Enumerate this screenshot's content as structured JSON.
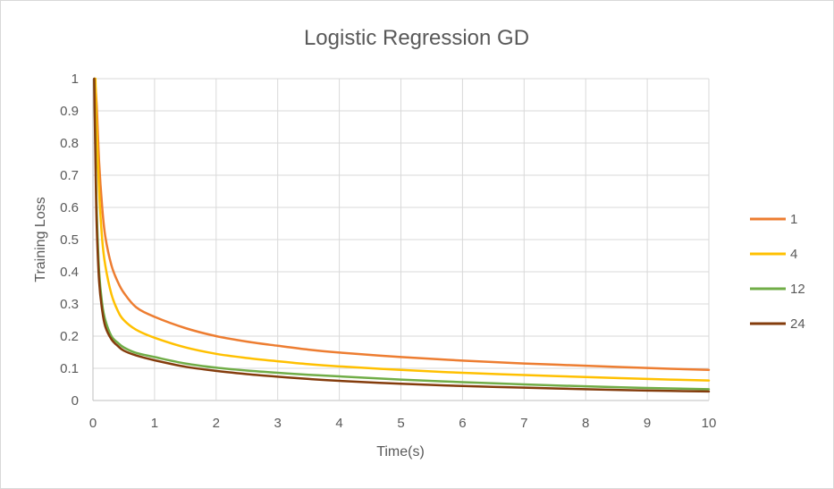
{
  "chart_data": {
    "type": "line",
    "title": "Logistic Regression GD",
    "xlabel": "Time(s)",
    "ylabel": "Training Loss",
    "xlim": [
      0,
      10
    ],
    "ylim": [
      0,
      1
    ],
    "x_ticks": [
      "0",
      "1",
      "2",
      "3",
      "4",
      "5",
      "6",
      "7",
      "8",
      "9",
      "10"
    ],
    "y_ticks": [
      "0",
      "0.1",
      "0.2",
      "0.3",
      "0.4",
      "0.5",
      "0.6",
      "0.7",
      "0.8",
      "0.9",
      "1"
    ],
    "grid": true,
    "legend_position": "right",
    "series": [
      {
        "name": "1",
        "color": "#ED7D31",
        "x": [
          0.03,
          0.06,
          0.1,
          0.15,
          0.2,
          0.3,
          0.4,
          0.5,
          0.7,
          1,
          1.5,
          2,
          2.5,
          3,
          3.5,
          4,
          5,
          6,
          7,
          8,
          9,
          10
        ],
        "y": [
          1.0,
          0.92,
          0.74,
          0.6,
          0.51,
          0.42,
          0.37,
          0.335,
          0.29,
          0.26,
          0.225,
          0.2,
          0.183,
          0.17,
          0.158,
          0.149,
          0.135,
          0.124,
          0.115,
          0.108,
          0.101,
          0.095
        ]
      },
      {
        "name": "4",
        "color": "#FFC000",
        "x": [
          0.04,
          0.06,
          0.1,
          0.15,
          0.2,
          0.3,
          0.4,
          0.5,
          0.7,
          1,
          1.5,
          2,
          2.5,
          3,
          3.5,
          4,
          5,
          6,
          7,
          8,
          9,
          10
        ],
        "y": [
          1.0,
          0.85,
          0.65,
          0.5,
          0.42,
          0.33,
          0.28,
          0.25,
          0.22,
          0.195,
          0.165,
          0.145,
          0.132,
          0.122,
          0.113,
          0.106,
          0.095,
          0.086,
          0.079,
          0.073,
          0.067,
          0.062
        ]
      },
      {
        "name": "12",
        "color": "#70AD47",
        "x": [
          0.02,
          0.04,
          0.06,
          0.1,
          0.15,
          0.2,
          0.3,
          0.4,
          0.5,
          0.7,
          1,
          1.5,
          2,
          2.5,
          3,
          3.5,
          4,
          5,
          6,
          7,
          8,
          9,
          10
        ],
        "y": [
          1.0,
          0.8,
          0.6,
          0.4,
          0.3,
          0.25,
          0.2,
          0.18,
          0.165,
          0.148,
          0.135,
          0.115,
          0.102,
          0.093,
          0.086,
          0.08,
          0.075,
          0.065,
          0.057,
          0.05,
          0.044,
          0.039,
          0.035
        ]
      },
      {
        "name": "24",
        "color": "#843C0C",
        "x": [
          0.02,
          0.04,
          0.06,
          0.1,
          0.15,
          0.2,
          0.3,
          0.4,
          0.5,
          0.7,
          1,
          1.5,
          2,
          2.5,
          3,
          3.5,
          4,
          5,
          6,
          7,
          8,
          9,
          10
        ],
        "y": [
          1.0,
          0.75,
          0.55,
          0.37,
          0.28,
          0.23,
          0.19,
          0.17,
          0.155,
          0.14,
          0.125,
          0.105,
          0.092,
          0.082,
          0.074,
          0.067,
          0.061,
          0.052,
          0.045,
          0.04,
          0.035,
          0.031,
          0.028
        ]
      }
    ]
  }
}
